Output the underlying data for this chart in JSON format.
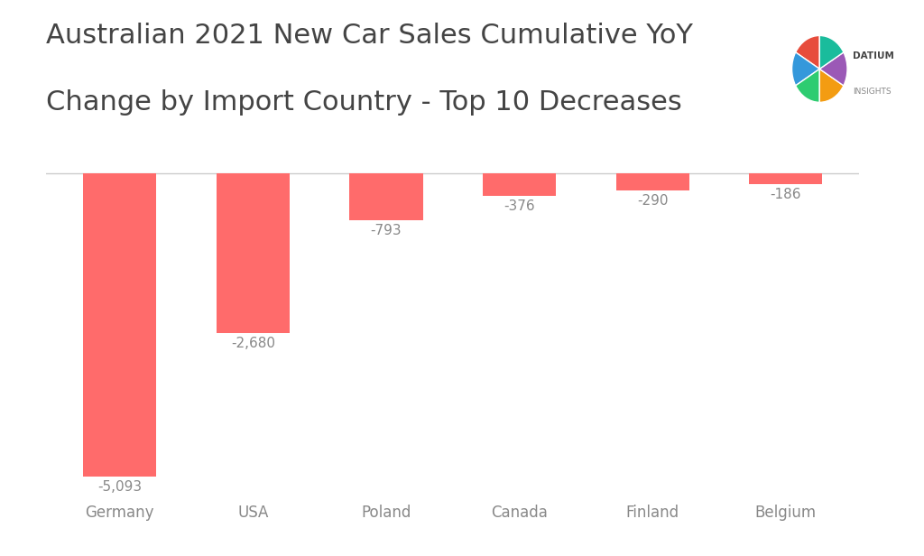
{
  "title_line1": "Australian 2021 New Car Sales Cumulative YoY",
  "title_line2": "Change by Import Country - Top 10 Decreases",
  "categories": [
    "Germany",
    "USA",
    "Poland",
    "Canada",
    "Finland",
    "Belgium"
  ],
  "values": [
    -5093,
    -2680,
    -793,
    -376,
    -290,
    -186
  ],
  "bar_color": "#FF6B6B",
  "label_color": "#888888",
  "title_color": "#444444",
  "background_color": "#FFFFFF",
  "bar_labels": [
    "-5,093",
    "-2,680",
    "-793",
    "-376",
    "-290",
    "-186"
  ],
  "label_fontsize": 11,
  "title_fontsize": 22,
  "tick_fontsize": 12,
  "ylim": [
    -5500,
    300
  ],
  "logo_colors": [
    "#E74C3C",
    "#3498DB",
    "#2ECC71",
    "#F39C12",
    "#9B59B6",
    "#1ABC9C"
  ],
  "logo_text": "DATIUM\nINSIGHTS",
  "logo_text_color": "#555555"
}
